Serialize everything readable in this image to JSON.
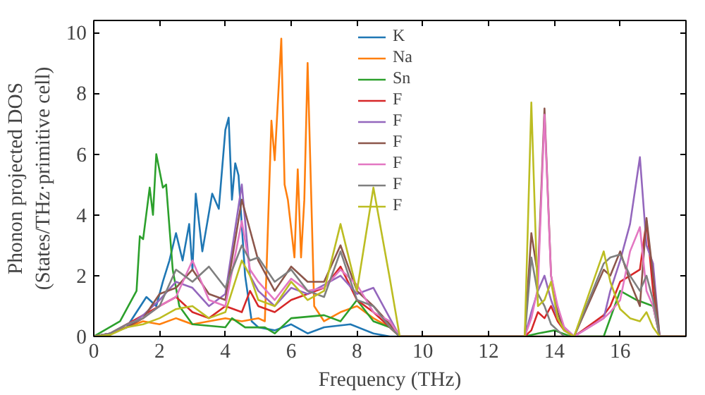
{
  "chart_data": {
    "type": "line",
    "xlabel": "Frequency (THz)",
    "ylabel": "Phonon projected DOS\n(States/THz·primitive cell)",
    "xlim": [
      0,
      18
    ],
    "ylim": [
      0,
      10.4
    ],
    "xticks": [
      0,
      2,
      4,
      6,
      8,
      10,
      12,
      14,
      16
    ],
    "yticks": [
      0,
      2,
      4,
      6,
      8,
      10
    ],
    "grid": false,
    "legend": "top",
    "series": [
      {
        "name": "K",
        "color": "#1f77b4",
        "x": [
          0,
          0.5,
          1,
          1.3,
          1.6,
          1.9,
          2.1,
          2.3,
          2.5,
          2.7,
          2.9,
          3.0,
          3.1,
          3.3,
          3.6,
          3.8,
          4.0,
          4.1,
          4.2,
          4.3,
          4.4,
          4.6,
          4.8,
          5.0,
          5.5,
          6,
          6.5,
          7,
          7.8,
          8.5,
          9,
          18
        ],
        "values": [
          0,
          0.1,
          0.3,
          0.8,
          1.3,
          1.0,
          1.8,
          2.5,
          3.4,
          2.5,
          3.7,
          2.2,
          4.7,
          2.8,
          4.7,
          4.2,
          6.8,
          7.2,
          4.5,
          5.7,
          5.3,
          2.0,
          0.5,
          0.3,
          0.2,
          0.4,
          0.1,
          0.3,
          0.4,
          0.1,
          0,
          0
        ]
      },
      {
        "name": "Na",
        "color": "#ff7f0e",
        "x": [
          0,
          0.5,
          1,
          1.5,
          2,
          2.5,
          3,
          3.5,
          4,
          4.5,
          5,
          5.2,
          5.4,
          5.5,
          5.7,
          5.8,
          5.9,
          6.1,
          6.2,
          6.3,
          6.4,
          6.5,
          6.7,
          7,
          7.5,
          8,
          8.5,
          9,
          9.3,
          18
        ],
        "values": [
          0,
          0.1,
          0.3,
          0.5,
          0.4,
          0.6,
          0.4,
          0.5,
          0.6,
          0.5,
          0.6,
          0.5,
          7.1,
          5.8,
          9.8,
          5.0,
          4.5,
          2.6,
          5.5,
          2.6,
          4.5,
          9.0,
          1.0,
          0.5,
          0.8,
          1.0,
          0.6,
          0.3,
          0,
          0
        ]
      },
      {
        "name": "Sn",
        "color": "#2ca02c",
        "x": [
          0,
          0.8,
          1.3,
          1.4,
          1.5,
          1.7,
          1.8,
          1.9,
          2.1,
          2.2,
          2.4,
          2.6,
          3,
          4,
          4.2,
          4.6,
          5.2,
          5.5,
          6,
          7,
          7.5,
          8,
          8.5,
          9,
          9.3,
          13.1,
          13.5,
          14,
          14.5,
          15.5,
          16,
          16.5,
          17,
          17.2,
          18
        ],
        "values": [
          0,
          0.5,
          1.5,
          3.3,
          3.2,
          4.9,
          4.0,
          6.0,
          4.9,
          5.0,
          2.2,
          1.0,
          0.4,
          0.3,
          0.6,
          0.3,
          0.3,
          0.1,
          0.6,
          0.7,
          0.5,
          1.2,
          0.5,
          0.3,
          0,
          0,
          0.1,
          0.2,
          0,
          0,
          1.5,
          1.2,
          1.0,
          0,
          0
        ]
      },
      {
        "name": "F",
        "color": "#d62728",
        "x": [
          0,
          0.5,
          1,
          1.5,
          2,
          2.5,
          3,
          3.5,
          4,
          4.5,
          4.75,
          5,
          5.5,
          6,
          6.5,
          7,
          7.5,
          8,
          8.5,
          9,
          9.3,
          13.1,
          13.3,
          13.5,
          13.7,
          13.9,
          14.1,
          14.3,
          14.6,
          15.5,
          15.7,
          16,
          16.3,
          16.6,
          16.8,
          17,
          17.2,
          18
        ],
        "values": [
          0,
          0.1,
          0.4,
          0.7,
          1.0,
          1.3,
          0.8,
          0.6,
          1.0,
          0.8,
          1.5,
          1.0,
          0.8,
          1.2,
          1.4,
          1.6,
          2.3,
          1.2,
          0.8,
          0.3,
          0,
          0,
          0.2,
          0.8,
          0.6,
          1.0,
          0.5,
          0.2,
          0,
          0.7,
          1.0,
          1.8,
          2.0,
          2.2,
          3.8,
          1.5,
          0,
          0
        ]
      },
      {
        "name": "F",
        "color": "#9467bd",
        "x": [
          0,
          0.5,
          1,
          1.5,
          2,
          2.5,
          3,
          3.5,
          4,
          4.5,
          4.75,
          5,
          5.5,
          6,
          6.5,
          7,
          7.5,
          8,
          8.5,
          9,
          9.3,
          13.1,
          13.3,
          13.5,
          13.7,
          13.9,
          14.1,
          14.3,
          14.6,
          15.5,
          15.7,
          16,
          16.3,
          16.6,
          16.8,
          17,
          17.2,
          18
        ],
        "values": [
          0,
          0.1,
          0.3,
          0.7,
          1.2,
          1.8,
          1.6,
          1.0,
          1.4,
          5.0,
          2.0,
          1.5,
          1.0,
          1.6,
          1.4,
          1.7,
          2.0,
          1.4,
          1.6,
          0.6,
          0,
          0,
          0.8,
          1.5,
          2.0,
          1.2,
          0.6,
          0.3,
          0,
          0.6,
          1.5,
          2.5,
          3.7,
          5.9,
          3.0,
          2.4,
          0,
          0
        ]
      },
      {
        "name": "F",
        "color": "#8c564b",
        "x": [
          0,
          0.5,
          1,
          1.5,
          2,
          2.5,
          3,
          3.5,
          4,
          4.5,
          4.75,
          5,
          5.5,
          6,
          6.5,
          7,
          7.5,
          8,
          8.5,
          9,
          9.3,
          13.1,
          13.3,
          13.5,
          13.7,
          13.9,
          14.1,
          14.3,
          14.6,
          15.5,
          15.7,
          16,
          16.3,
          16.6,
          16.8,
          17,
          17.2,
          18
        ],
        "values": [
          0,
          0.1,
          0.3,
          0.6,
          1.4,
          1.6,
          2.2,
          1.4,
          1.2,
          4.5,
          3.5,
          2.5,
          1.5,
          2.3,
          1.8,
          1.8,
          3.0,
          1.5,
          1.0,
          0.4,
          0,
          0,
          3.4,
          2.0,
          7.5,
          2.0,
          0.8,
          0.2,
          0,
          2.2,
          2.0,
          2.8,
          1.8,
          1.0,
          3.9,
          2.0,
          0,
          0
        ]
      },
      {
        "name": "F",
        "color": "#e377c2",
        "x": [
          0,
          0.5,
          1,
          1.5,
          2,
          2.5,
          3,
          3.5,
          4,
          4.5,
          4.75,
          5,
          5.5,
          6,
          6.5,
          7,
          7.5,
          8,
          8.5,
          9,
          9.3,
          13.1,
          13.3,
          13.5,
          13.7,
          13.9,
          14.1,
          14.3,
          14.6,
          15.5,
          15.7,
          16,
          16.3,
          16.6,
          16.8,
          17,
          17.2,
          18
        ],
        "values": [
          0,
          0.1,
          0.4,
          0.6,
          1.0,
          1.3,
          2.5,
          1.2,
          1.0,
          3.8,
          2.2,
          1.8,
          1.2,
          1.9,
          1.5,
          1.6,
          2.2,
          1.7,
          0.8,
          0.5,
          0,
          0,
          0.6,
          1.6,
          7.3,
          2.0,
          1.0,
          0.3,
          0,
          0.6,
          0.8,
          1.2,
          2.8,
          3.6,
          1.5,
          1.0,
          0,
          0
        ]
      },
      {
        "name": "F",
        "color": "#7f7f7f",
        "x": [
          0,
          0.5,
          1,
          1.5,
          2,
          2.5,
          3,
          3.5,
          4,
          4.5,
          4.75,
          5,
          5.5,
          6,
          6.5,
          7,
          7.5,
          8,
          8.5,
          9,
          9.3,
          13.1,
          13.3,
          13.5,
          13.7,
          13.9,
          14.1,
          14.3,
          14.6,
          15.5,
          15.7,
          16,
          16.3,
          16.6,
          16.8,
          17,
          17.2,
          18
        ],
        "values": [
          0,
          0.1,
          0.4,
          0.6,
          1.0,
          2.2,
          1.8,
          2.3,
          1.6,
          3.0,
          2.5,
          2.6,
          1.8,
          2.2,
          1.5,
          1.3,
          2.8,
          1.2,
          1.0,
          0.3,
          0,
          0,
          2.6,
          1.4,
          1.0,
          0.4,
          0.2,
          0,
          0,
          2.4,
          2.6,
          2.7,
          2.0,
          1.5,
          2.0,
          1.2,
          0,
          0
        ]
      },
      {
        "name": "F",
        "color": "#bcbd22",
        "x": [
          0,
          0.5,
          1,
          1.5,
          2,
          2.5,
          3,
          3.5,
          4,
          4.5,
          4.75,
          5,
          5.5,
          6,
          6.5,
          7,
          7.5,
          8,
          8.5,
          9,
          9.3,
          13.1,
          13.3,
          13.5,
          13.7,
          13.9,
          14.1,
          14.3,
          14.6,
          15.5,
          15.7,
          16,
          16.3,
          16.6,
          16.8,
          17,
          17.2,
          18
        ],
        "values": [
          0,
          0.05,
          0.3,
          0.4,
          0.6,
          0.9,
          1.0,
          0.6,
          0.8,
          2.5,
          2.0,
          1.2,
          1.0,
          1.8,
          1.2,
          1.5,
          3.7,
          1.5,
          4.9,
          1.9,
          0,
          0,
          7.7,
          1.0,
          1.2,
          1.8,
          0.6,
          0.2,
          0,
          2.8,
          1.8,
          0.9,
          0.6,
          0.5,
          0.8,
          0.3,
          0,
          0
        ]
      }
    ]
  }
}
